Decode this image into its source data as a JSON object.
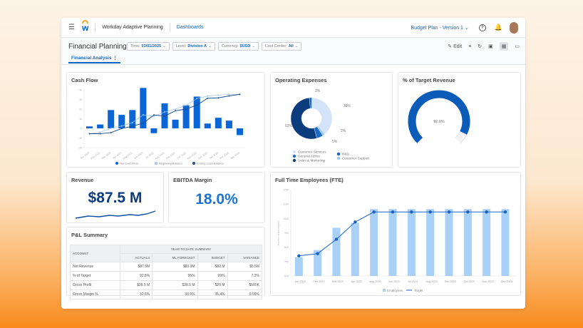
{
  "header": {
    "app_name": "Workday Adaptive Planning",
    "nav_link": "Dashboards",
    "plan_selector": "Budget Plan - Version 1"
  },
  "toolbar": {
    "page_title": "Financial Planning",
    "filters": [
      {
        "label": "Time:",
        "value": "03/01/2025"
      },
      {
        "label": "Level:",
        "value": "Division A"
      },
      {
        "label": "Currency:",
        "value": "$USD"
      },
      {
        "label": "Cost Center:",
        "value": "All"
      }
    ],
    "edit_label": "Edit",
    "tab": "Financial Analysis"
  },
  "cash_flow": {
    "title": "Cash Flow",
    "chart_data": {
      "type": "bar",
      "ylim": [
        -20,
        40
      ],
      "ticks": [
        "-20",
        "-10",
        "0",
        "10",
        "20",
        "30",
        "40"
      ],
      "categories": [
        "Jan 2025",
        "Feb 2025",
        "Mar 2025",
        "Apr 2025",
        "May 2025",
        "Jun 2025",
        "Jul 2025",
        "Aug 2025",
        "Sep 2025",
        "Oct 2025",
        "Nov 2025",
        "Dec 2025",
        "Jan 2026",
        "Feb 2026",
        "Mar 2026"
      ],
      "series": [
        {
          "name": "Net Cash Flow",
          "type": "bar",
          "values": [
            2,
            4,
            19,
            14,
            19,
            42,
            -5,
            26,
            9,
            24,
            33,
            5,
            11,
            8,
            -7
          ]
        },
        {
          "name": "Beginning Balance",
          "type": "line",
          "values": [
            -5.6,
            -4,
            0,
            2.5,
            6,
            14,
            12.5,
            17,
            20,
            24,
            31,
            33.5,
            34.5,
            35.5,
            35
          ]
        },
        {
          "name": "Ending Cash Balance",
          "type": "line",
          "values": [
            -5.6,
            -5.6,
            -4.4,
            -0.2,
            2.2,
            5.4,
            13.9,
            12.7,
            18.3,
            20,
            24.1,
            31.2,
            31.7,
            33.7,
            35.4
          ]
        }
      ]
    }
  },
  "operating_expenses": {
    "title": "Operating Expenses",
    "chart_data": {
      "type": "pie",
      "slices": [
        {
          "name": "Customer Services",
          "value": 38,
          "label": "38%",
          "color": "#d3e4f8"
        },
        {
          "name": "Customer Support",
          "value": 2,
          "label": "2%",
          "color": "#9ec8f3"
        },
        {
          "name": "General Admin",
          "value": 5,
          "label": "5%",
          "color": "#1c6ac8"
        },
        {
          "name": "Sales & Marketing",
          "value": 52,
          "label": "52%",
          "color": "#0b3c7d"
        },
        {
          "name": "R&D",
          "value": 2,
          "label": "2%",
          "color": "#1467c4"
        }
      ]
    }
  },
  "target_revenue": {
    "title": "% of Target Revenue",
    "value": 92.8,
    "label": "92.8%"
  },
  "revenue": {
    "title": "Revenue",
    "value": "$87.5 M"
  },
  "ebitda": {
    "title": "EBITDA Margin",
    "value": "18.0%"
  },
  "pl_summary": {
    "title": "P&L Summary",
    "group_header": "YEAR TO DATE SUMMARY",
    "columns": [
      "ACCOUNT",
      "ACTUALS",
      "ML FORECAST",
      "BUDGET",
      "VARIANCE"
    ],
    "rows": [
      [
        "Net Revenue",
        "$87.5M",
        "$83.9M",
        "$82 M",
        "$5.5M"
      ],
      [
        "% of Target",
        "92.8%",
        "95%",
        "99%",
        "7.2%"
      ],
      [
        "Gross Profit",
        "$28.5 M",
        "$28.5 M",
        "$29 M",
        "$500K"
      ],
      [
        "Gross Margin %",
        "32.6%",
        "33.9%",
        "35.4%",
        "9.09%"
      ]
    ]
  },
  "fte": {
    "title": "Full Time Employees (FTE)",
    "chart_data": {
      "type": "bar",
      "ylabel": "Number of Employees",
      "ylim": [
        600,
        1200
      ],
      "ticks": [
        "600",
        "700",
        "800",
        "900",
        "1000",
        "1100",
        "1200"
      ],
      "categories": [
        "Jan 2023",
        "Feb 2023",
        "Mar 2023",
        "Apr 2023",
        "May 2023",
        "Jun 2023",
        "Jul 2023",
        "Aug 2023",
        "Sep 2023",
        "Oct 2023",
        "Nov 2023",
        "Dec 2023"
      ],
      "series": [
        {
          "name": "Employees",
          "type": "bar",
          "values": [
            730,
            780,
            935,
            970,
            1065,
            1065,
            1065,
            1065,
            1065,
            1065,
            1065,
            1065
          ]
        },
        {
          "name": "Target",
          "type": "line",
          "values": [
            740,
            755,
            855,
            975,
            1045,
            1045,
            1045,
            1045,
            1045,
            1045,
            1045,
            1045
          ]
        }
      ]
    }
  },
  "colors": {
    "accent": "#1565c0",
    "bar": "#0a66d6",
    "light_bar": "#a9d0f7"
  }
}
